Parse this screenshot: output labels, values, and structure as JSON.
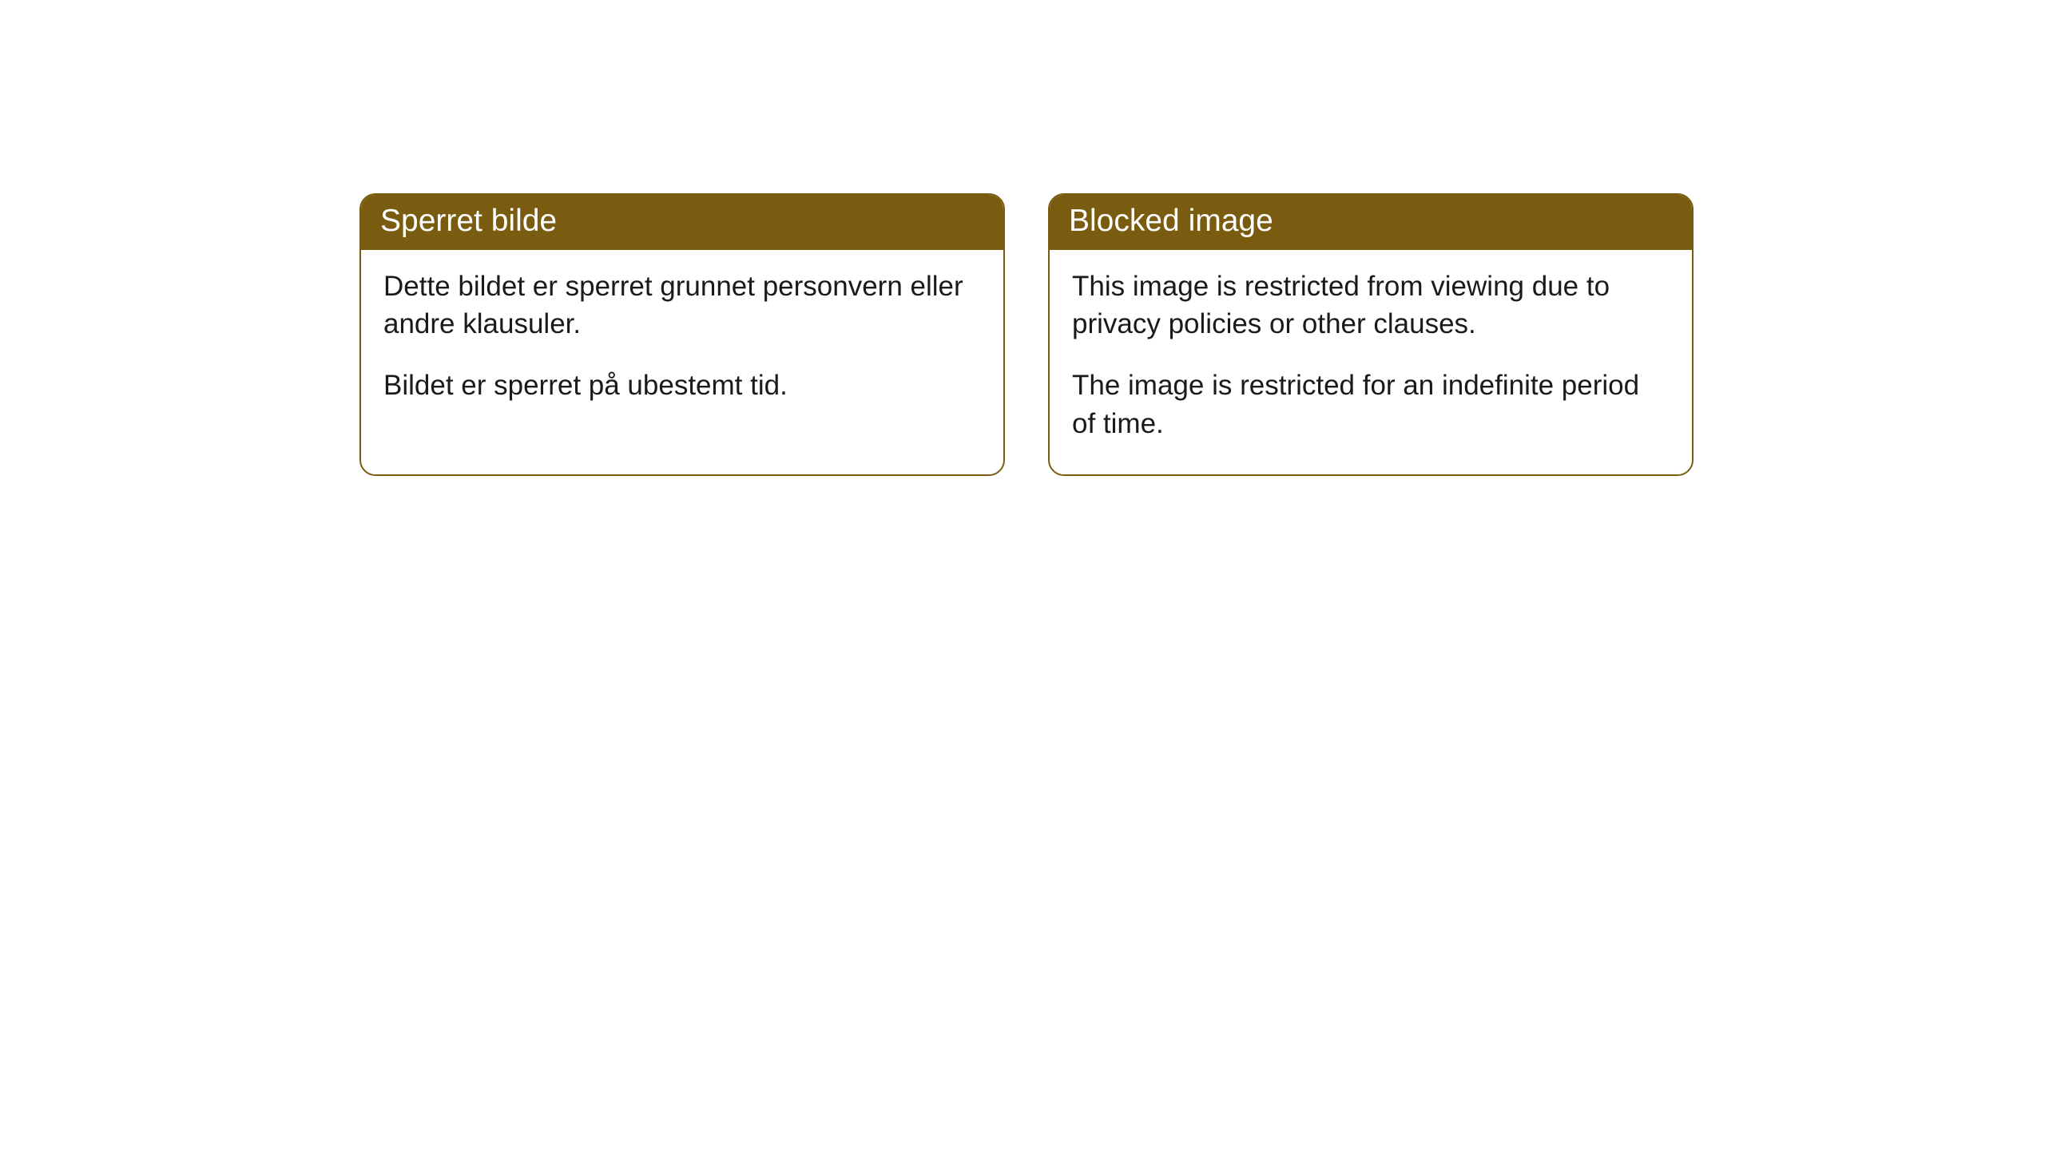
{
  "cards": [
    {
      "title": "Sperret bilde",
      "paragraph1": "Dette bildet er sperret grunnet personvern eller andre klausuler.",
      "paragraph2": "Bildet er sperret på ubestemt tid."
    },
    {
      "title": "Blocked image",
      "paragraph1": "This image is restricted from viewing due to privacy policies or other clauses.",
      "paragraph2": "The image is restricted for an indefinite period of time."
    }
  ],
  "style": {
    "header_bg": "#7a5c10",
    "header_text_color": "#ffffff",
    "border_color": "#7a5c10",
    "body_bg": "#ffffff",
    "body_text_color": "#1a1a1a",
    "title_fontsize": 39,
    "body_fontsize": 35,
    "border_radius": 20
  }
}
